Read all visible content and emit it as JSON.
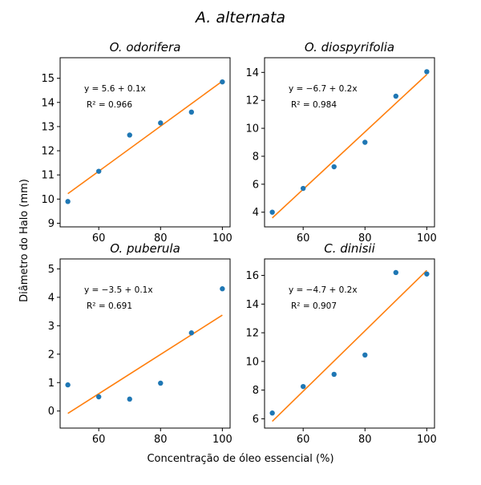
{
  "figure": {
    "suptitle": "A. alternata",
    "xlabel": "Concentração de óleo essencial (%)",
    "ylabel": "Diâmetro do Halo (mm)"
  },
  "colors": {
    "points": "#1f77b4",
    "fit_line": "#ff7f0e",
    "axes": "#000000"
  },
  "chart_data": [
    {
      "type": "scatter",
      "title": "O. odorifera",
      "x": [
        50,
        60,
        70,
        80,
        90,
        100
      ],
      "y": [
        9.9,
        11.15,
        12.65,
        13.15,
        13.6,
        14.85
      ],
      "fit": {
        "intercept": 5.6,
        "slope": 0.1,
        "x_range": [
          50,
          100
        ]
      },
      "annotation": [
        "y = 5.6 + 0.1x",
        "R² = 0.966"
      ],
      "xlim": [
        47.5,
        102.5
      ],
      "ylim": [
        8.85,
        15.85
      ],
      "xticks": [
        60,
        80,
        100
      ],
      "yticks": [
        9,
        10,
        11,
        12,
        13,
        14,
        15
      ],
      "grid": false
    },
    {
      "type": "scatter",
      "title": "O. diospyrifolia",
      "x": [
        50,
        60,
        70,
        80,
        90,
        100
      ],
      "y": [
        4.0,
        5.7,
        7.25,
        9.0,
        12.3,
        14.05
      ],
      "fit": {
        "intercept": -6.7,
        "slope": 0.2,
        "x_range": [
          50,
          100
        ]
      },
      "annotation": [
        "y = −6.7 + 0.2x",
        "R² = 0.984"
      ],
      "xlim": [
        47.5,
        102.5
      ],
      "ylim": [
        2.95,
        15.05
      ],
      "xticks": [
        60,
        80,
        100
      ],
      "yticks": [
        4,
        6,
        8,
        10,
        12,
        14
      ],
      "grid": false
    },
    {
      "type": "scatter",
      "title": "O. puberula",
      "x": [
        50,
        60,
        70,
        80,
        90,
        100
      ],
      "y": [
        0.92,
        0.5,
        0.42,
        0.98,
        2.75,
        4.3
      ],
      "fit": {
        "intercept": -3.5,
        "slope": 0.1,
        "x_range": [
          50,
          100
        ]
      },
      "annotation": [
        "y = −3.5 + 0.1x",
        "R² = 0.691"
      ],
      "xlim": [
        47.5,
        102.5
      ],
      "ylim": [
        -0.6,
        5.35
      ],
      "xticks": [
        60,
        80,
        100
      ],
      "yticks": [
        0,
        1,
        2,
        3,
        4,
        5
      ],
      "grid": false
    },
    {
      "type": "scatter",
      "title": "C. dinisii",
      "x": [
        50,
        60,
        70,
        80,
        90,
        100
      ],
      "y": [
        6.4,
        8.25,
        9.1,
        10.45,
        16.2,
        16.1
      ],
      "fit": {
        "intercept": -4.7,
        "slope": 0.2,
        "x_range": [
          50,
          100
        ]
      },
      "annotation": [
        "y = −4.7 + 0.2x",
        "R² = 0.907"
      ],
      "xlim": [
        47.5,
        102.5
      ],
      "ylim": [
        5.35,
        17.15
      ],
      "xticks": [
        60,
        80,
        100
      ],
      "yticks": [
        6,
        8,
        10,
        12,
        14,
        16
      ],
      "grid": false
    }
  ]
}
